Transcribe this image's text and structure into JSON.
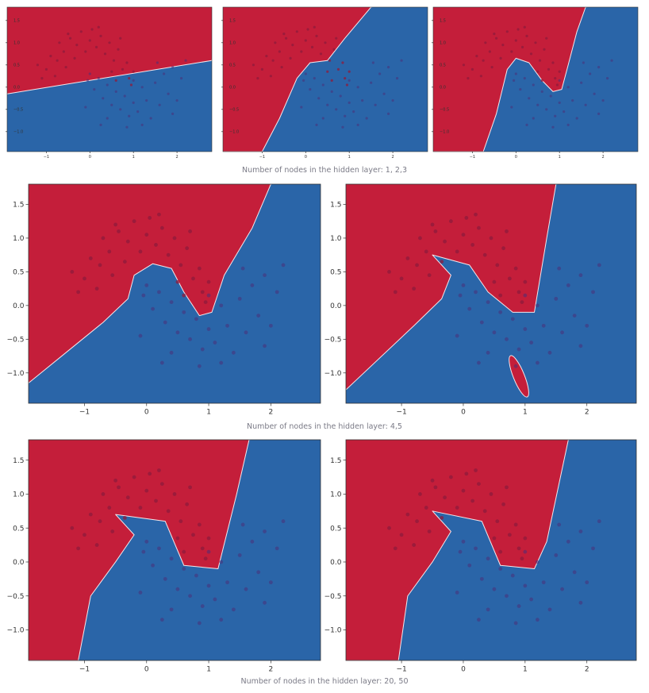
{
  "colors": {
    "class_red": "#c41e3a",
    "class_blue": "#2a65a8",
    "point_red": "#8f1b3c",
    "point_blue": "#4a2f78",
    "frame": "#333333"
  },
  "captions": {
    "row1": "Number of nodes in the hidden layer: 1, 2,3",
    "row2": "Number of nodes in the hidden layer: 4,5",
    "row3": "Number of nodes in the hidden layer: 20, 50"
  },
  "chart_data": [
    {
      "type": "scatter",
      "hidden_nodes": 1,
      "xlim": [
        -1.9,
        2.8
      ],
      "ylim": [
        -1.45,
        1.8
      ],
      "xticks": [
        "-1",
        "0",
        "1",
        "2"
      ],
      "yticks": [
        "-1.0",
        "-0.5",
        "0.0",
        "0.5",
        "1.0",
        "1.5"
      ],
      "background": "decision regions: red (upper), blue (lower)",
      "boundary": [
        [
          -1.9,
          -0.15
        ],
        [
          2.8,
          0.6
        ]
      ]
    },
    {
      "type": "scatter",
      "hidden_nodes": 2,
      "xlim": [
        -1.9,
        2.8
      ],
      "ylim": [
        -1.45,
        1.8
      ],
      "xticks": [
        "-1",
        "0",
        "1",
        "2"
      ],
      "yticks": [
        "-1.0",
        "-0.5",
        "0.0",
        "0.5",
        "1.0",
        "1.5"
      ],
      "background": "decision regions: red (upper-left), blue (lower-right)",
      "boundary": [
        [
          -1.0,
          -1.45
        ],
        [
          -0.6,
          -0.7
        ],
        [
          -0.2,
          0.2
        ],
        [
          0.1,
          0.55
        ],
        [
          0.5,
          0.6
        ],
        [
          0.9,
          1.1
        ],
        [
          1.5,
          1.8
        ]
      ]
    },
    {
      "type": "scatter",
      "hidden_nodes": 3,
      "xlim": [
        -1.9,
        2.8
      ],
      "ylim": [
        -1.45,
        1.8
      ],
      "xticks": [
        "-1",
        "0",
        "1",
        "2"
      ],
      "yticks": [
        "-1.0",
        "-0.5",
        "0.0",
        "0.5",
        "1.0",
        "1.5"
      ],
      "background": "decision regions: red (upper-left), blue (lower-right)",
      "boundary": [
        [
          -0.75,
          -1.45
        ],
        [
          -0.45,
          -0.6
        ],
        [
          -0.2,
          0.4
        ],
        [
          0.0,
          0.65
        ],
        [
          0.3,
          0.55
        ],
        [
          0.6,
          0.15
        ],
        [
          0.85,
          -0.1
        ],
        [
          1.05,
          -0.05
        ],
        [
          1.2,
          0.5
        ],
        [
          1.4,
          1.25
        ],
        [
          1.6,
          1.8
        ]
      ]
    },
    {
      "type": "scatter",
      "hidden_nodes": 4,
      "xlim": [
        -1.9,
        2.8
      ],
      "ylim": [
        -1.45,
        1.8
      ],
      "xticks": [
        "-1",
        "0",
        "1",
        "2"
      ],
      "yticks": [
        "-1.0",
        "-0.5",
        "0.0",
        "0.5",
        "1.0",
        "1.5"
      ],
      "background": "decision regions: red (upper-left), blue (lower-right)",
      "boundary": [
        [
          -1.9,
          -1.15
        ],
        [
          -1.3,
          -0.7
        ],
        [
          -0.7,
          -0.25
        ],
        [
          -0.3,
          0.1
        ],
        [
          -0.2,
          0.45
        ],
        [
          0.1,
          0.62
        ],
        [
          0.4,
          0.55
        ],
        [
          0.6,
          0.2
        ],
        [
          0.85,
          -0.15
        ],
        [
          1.05,
          -0.1
        ],
        [
          1.25,
          0.45
        ],
        [
          1.7,
          1.15
        ],
        [
          2.0,
          1.8
        ]
      ]
    },
    {
      "type": "scatter",
      "hidden_nodes": 5,
      "xlim": [
        -1.9,
        2.8
      ],
      "ylim": [
        -1.45,
        1.8
      ],
      "xticks": [
        "-1",
        "0",
        "1",
        "2"
      ],
      "yticks": [
        "-1.0",
        "-0.5",
        "0.0",
        "0.5",
        "1.0",
        "1.5"
      ],
      "background": "decision regions: red (left/upper), blue (lower-right) with red island near (0.9,-1.05)",
      "boundary": [
        [
          -1.9,
          -1.25
        ],
        [
          -0.8,
          -0.3
        ],
        [
          -0.35,
          0.1
        ],
        [
          -0.2,
          0.45
        ],
        [
          -0.5,
          0.75
        ],
        [
          0.1,
          0.6
        ],
        [
          0.4,
          0.2
        ],
        [
          0.8,
          -0.1
        ],
        [
          1.15,
          -0.1
        ],
        [
          1.35,
          1.0
        ],
        [
          1.5,
          1.8
        ]
      ]
    },
    {
      "type": "scatter",
      "hidden_nodes": 20,
      "xlim": [
        -1.9,
        2.8
      ],
      "ylim": [
        -1.45,
        1.8
      ],
      "xticks": [
        "-1",
        "0",
        "1",
        "2"
      ],
      "yticks": [
        "-1.0",
        "-0.5",
        "0.0",
        "0.5",
        "1.0",
        "1.5"
      ],
      "background": "decision regions: red (left/upper), blue (lower-right)",
      "boundary": [
        [
          -1.1,
          -1.45
        ],
        [
          -0.9,
          -0.5
        ],
        [
          -0.5,
          0.0
        ],
        [
          -0.2,
          0.4
        ],
        [
          -0.5,
          0.7
        ],
        [
          0.3,
          0.6
        ],
        [
          0.6,
          -0.05
        ],
        [
          1.15,
          -0.1
        ],
        [
          1.45,
          1.0
        ],
        [
          1.65,
          1.8
        ]
      ]
    },
    {
      "type": "scatter",
      "hidden_nodes": 50,
      "xlim": [
        -1.9,
        2.8
      ],
      "ylim": [
        -1.45,
        1.8
      ],
      "xticks": [
        "-1",
        "0",
        "1",
        "2"
      ],
      "yticks": [
        "-1.0",
        "-0.5",
        "0.0",
        "0.5",
        "1.0",
        "1.5"
      ],
      "background": "decision regions: red (left/upper), blue (lower-right)",
      "boundary": [
        [
          -1.05,
          -1.45
        ],
        [
          -0.9,
          -0.5
        ],
        [
          -0.5,
          0.0
        ],
        [
          -0.2,
          0.45
        ],
        [
          -0.5,
          0.75
        ],
        [
          0.3,
          0.6
        ],
        [
          0.6,
          -0.05
        ],
        [
          1.15,
          -0.1
        ],
        [
          1.35,
          0.3
        ],
        [
          1.7,
          1.8
        ]
      ]
    }
  ]
}
